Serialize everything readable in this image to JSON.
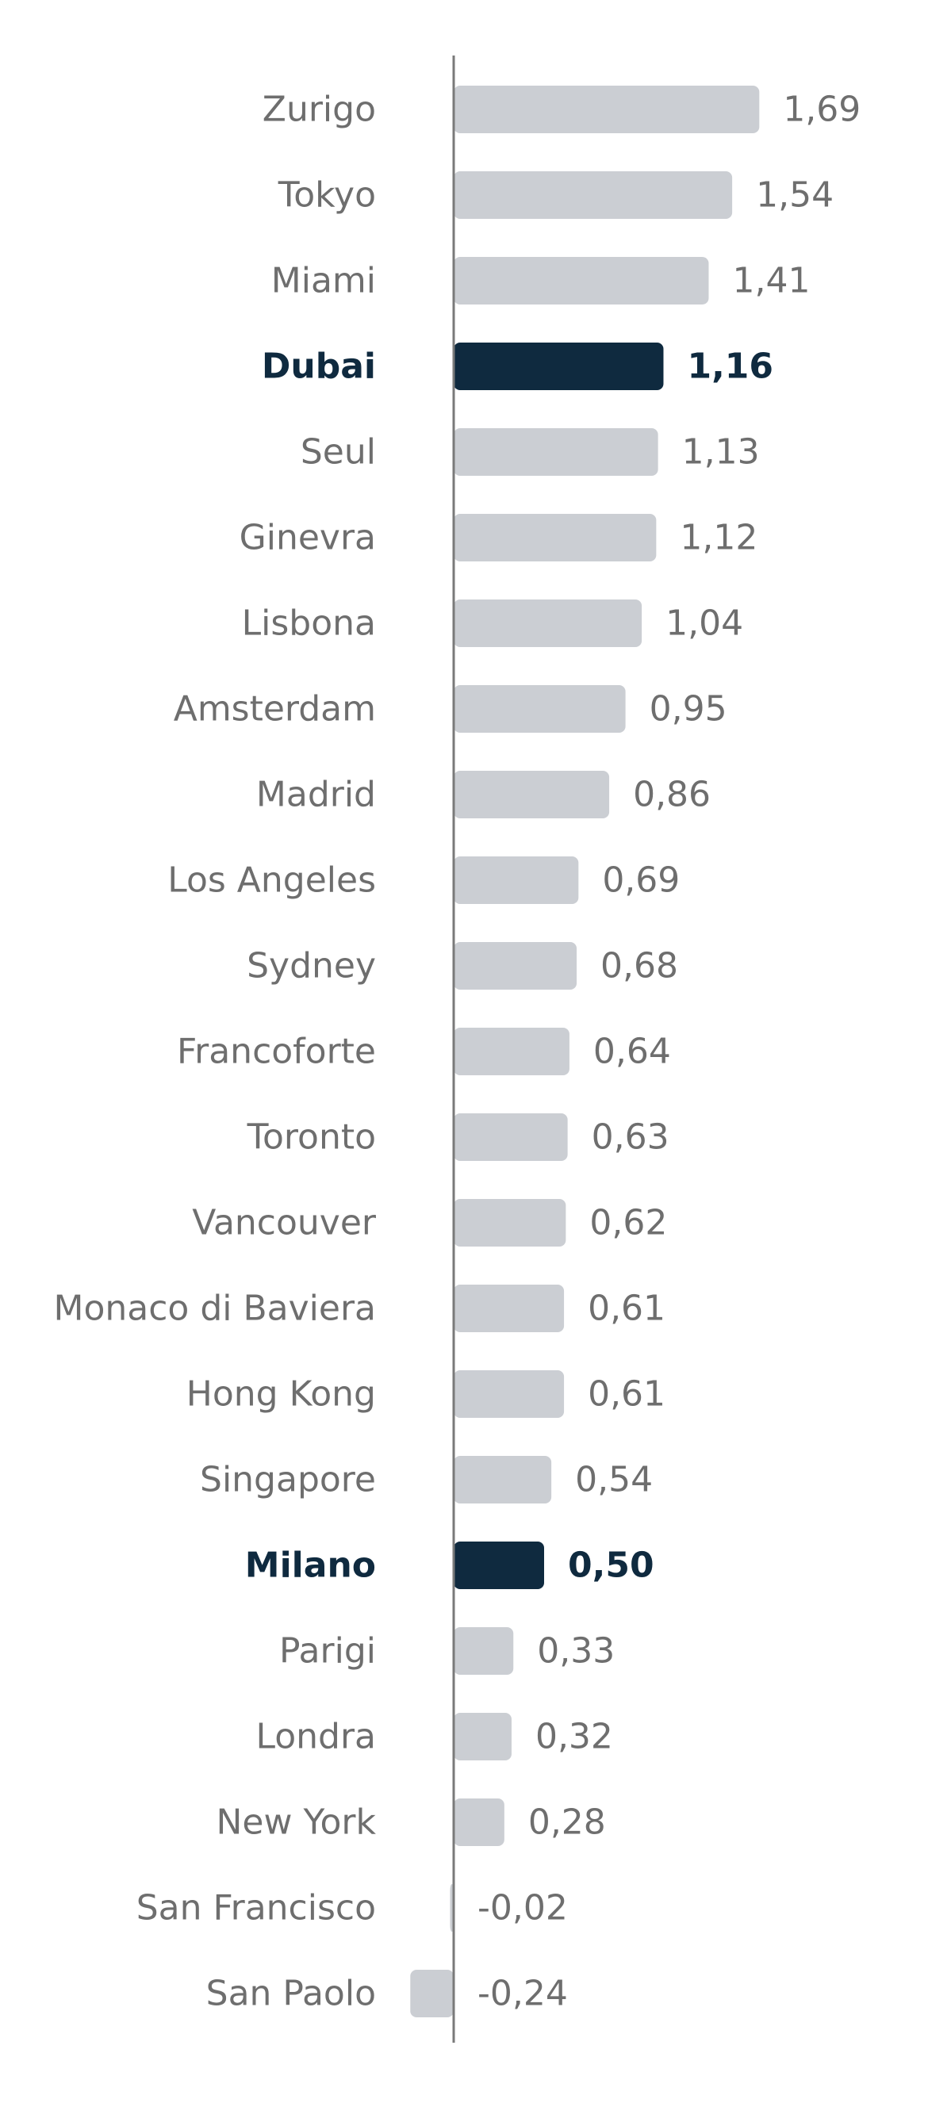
{
  "chart_data": {
    "type": "bar",
    "orientation": "horizontal",
    "title": "",
    "xlabel": "",
    "ylabel": "",
    "grid": false,
    "legend": "none",
    "xlim": [
      -0.24,
      1.69
    ],
    "colors": {
      "bar": "#cbced3",
      "highlight": "#0f2a3f",
      "axis": "#7a7a7a",
      "label": "#6e6e6e"
    },
    "highlighted": [
      "Dubai",
      "Milano"
    ],
    "categories": [
      "Zurigo",
      "Tokyo",
      "Miami",
      "Dubai",
      "Seul",
      "Ginevra",
      "Lisbona",
      "Amsterdam",
      "Madrid",
      "Los Angeles",
      "Sydney",
      "Francoforte",
      "Toronto",
      "Vancouver",
      "Monaco di Baviera",
      "Hong Kong",
      "Singapore",
      "Milano",
      "Parigi",
      "Londra",
      "New York",
      "San Francisco",
      "San Paolo"
    ],
    "values": [
      1.69,
      1.54,
      1.41,
      1.16,
      1.13,
      1.12,
      1.04,
      0.95,
      0.86,
      0.69,
      0.68,
      0.64,
      0.63,
      0.62,
      0.61,
      0.61,
      0.54,
      0.5,
      0.33,
      0.32,
      0.28,
      -0.02,
      -0.24
    ],
    "value_labels": [
      "1,69",
      "1,54",
      "1,41",
      "1,16",
      "1,13",
      "1,12",
      "1,04",
      "0,95",
      "0,86",
      "0,69",
      "0,68",
      "0,64",
      "0,63",
      "0,62",
      "0,61",
      "0,61",
      "0,54",
      "0,50",
      "0,33",
      "0,32",
      "0,28",
      "-0,02",
      "-0,24"
    ]
  }
}
